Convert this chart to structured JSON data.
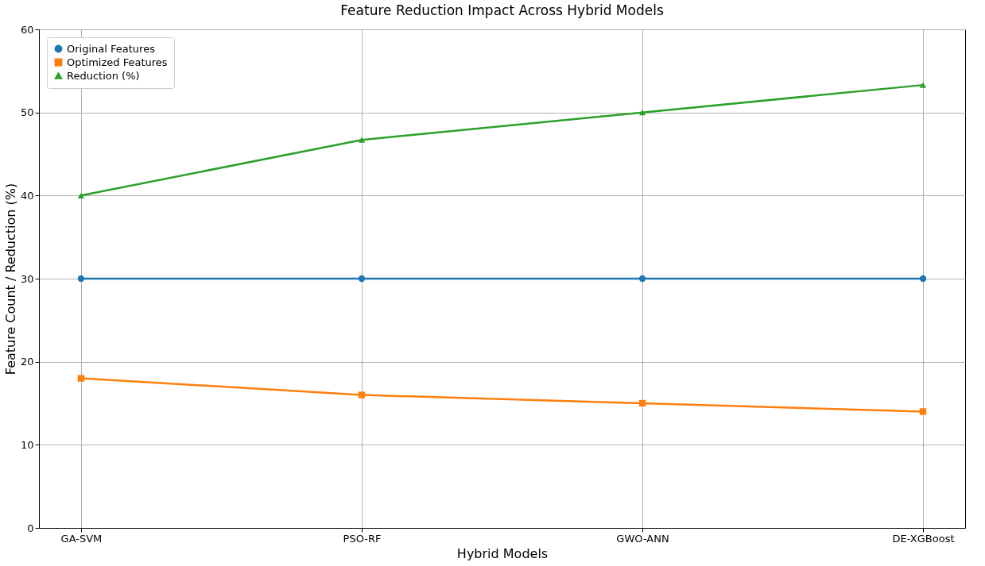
{
  "chart_data": {
    "type": "line",
    "title": "Feature Reduction Impact Across Hybrid Models",
    "xlabel": "Hybrid Models",
    "ylabel": "Feature Count / Reduction (%)",
    "categories": [
      "GA-SVM",
      "PSO-RF",
      "GWO-ANN",
      "DE-XGBoost"
    ],
    "series": [
      {
        "name": "Original Features",
        "color": "#1f77b4",
        "marker": "circle",
        "values": [
          30,
          30,
          30,
          30
        ]
      },
      {
        "name": "Optimized Features",
        "color": "#ff7f0e",
        "marker": "square",
        "values": [
          18,
          16,
          15,
          14
        ]
      },
      {
        "name": "Reduction (%)",
        "color": "#2ca02c",
        "marker": "triangle",
        "values": [
          40,
          46.7,
          50,
          53.3
        ]
      }
    ],
    "ylim": [
      0,
      60
    ],
    "yticks": [
      0,
      10,
      20,
      30,
      40,
      50,
      60
    ],
    "grid": true,
    "legend": "top left",
    "line_style": "solid"
  }
}
